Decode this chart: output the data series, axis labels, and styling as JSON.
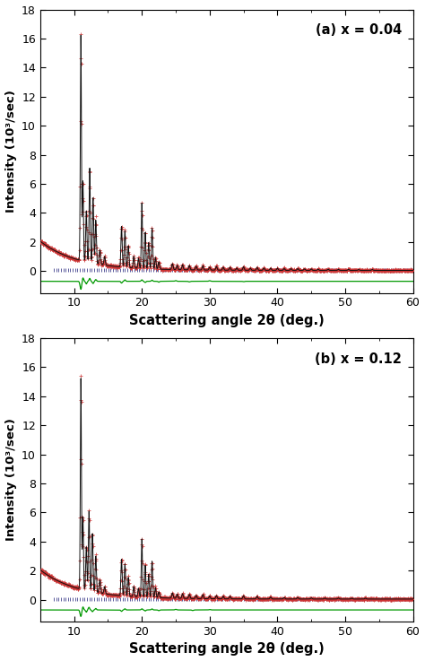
{
  "panels": [
    {
      "label": "(a) x = 0.04",
      "xlim": [
        5,
        60
      ],
      "ylim": [
        -1.5,
        18
      ],
      "yticks": [
        0,
        2,
        4,
        6,
        8,
        10,
        12,
        14,
        16,
        18
      ],
      "panel_idx": 0
    },
    {
      "label": "(b) x = 0.12",
      "xlim": [
        5,
        60
      ],
      "ylim": [
        -1.5,
        18
      ],
      "yticks": [
        0,
        2,
        4,
        6,
        8,
        10,
        12,
        14,
        16,
        18
      ],
      "panel_idx": 1
    }
  ],
  "xlabel": "Scattering angle 2θ (deg.)",
  "ylabel": "Intensity (10³/sec)",
  "cross_color": "#cc3333",
  "fit_color": "#111111",
  "tick_color": "#000066",
  "diff_color": "#009900",
  "background_color": "#ffffff",
  "xticks": [
    10,
    20,
    30,
    40,
    50,
    60
  ]
}
